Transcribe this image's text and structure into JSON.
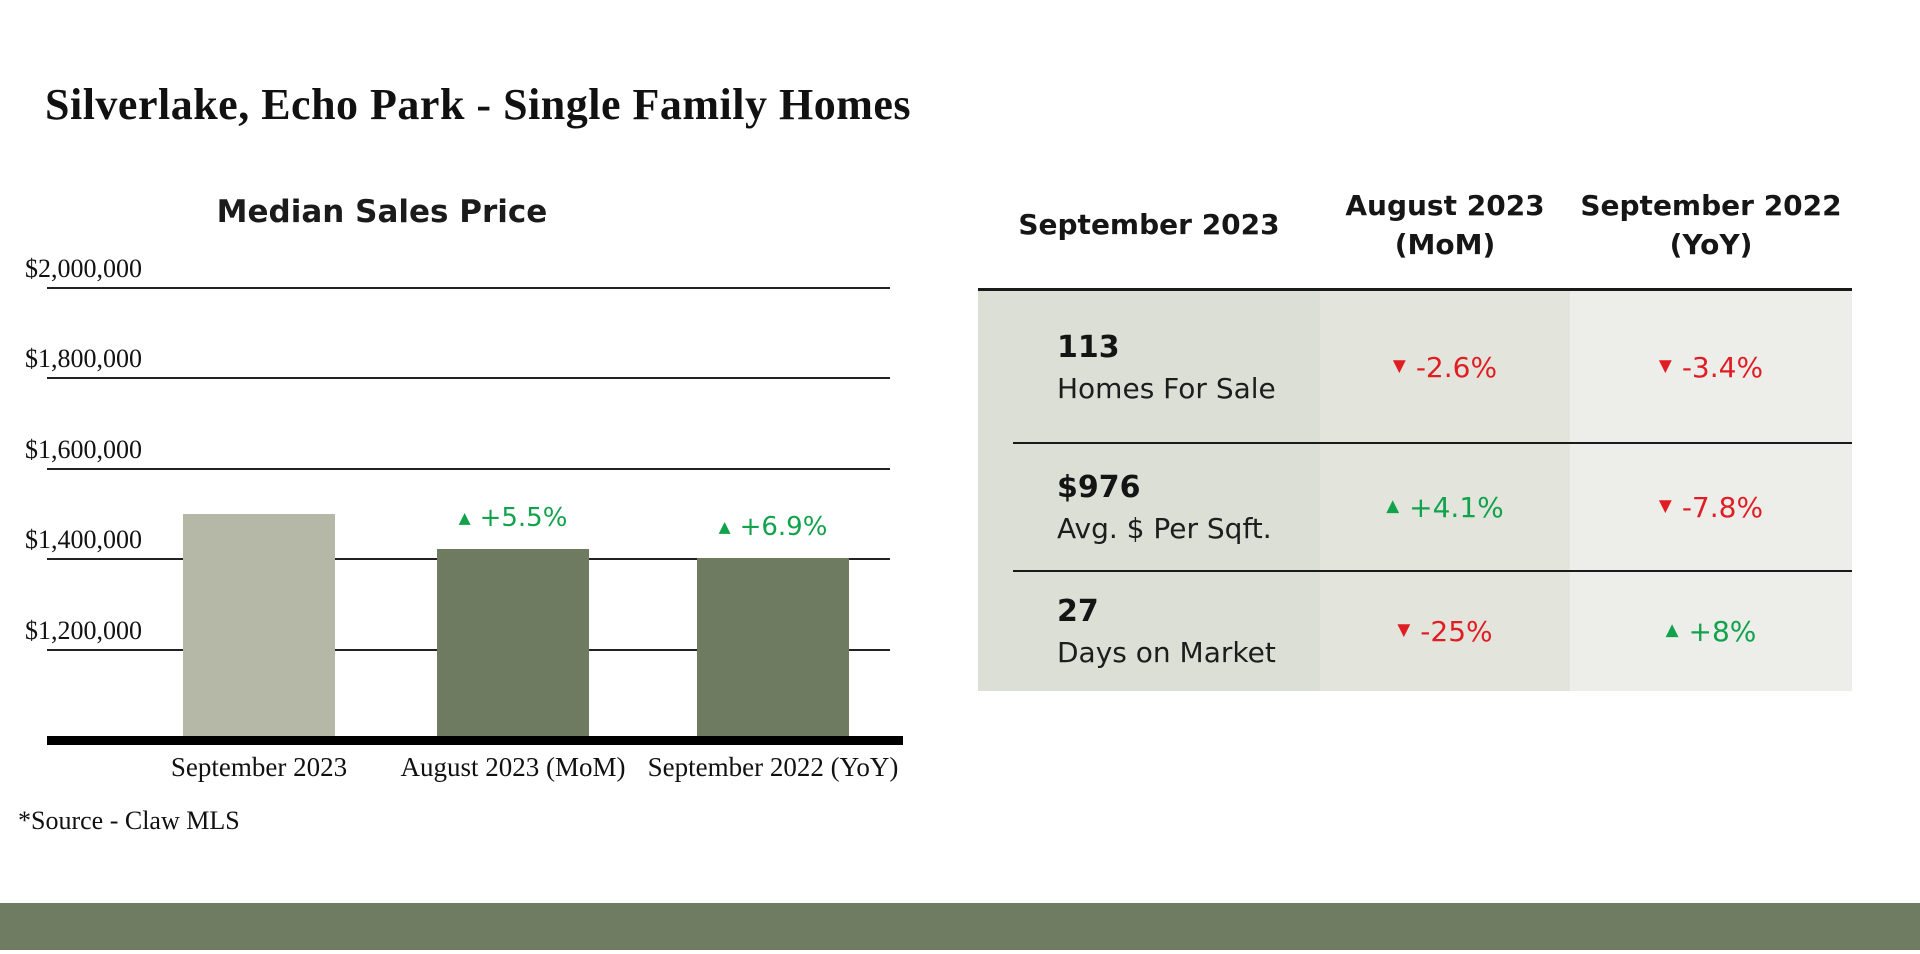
{
  "page": {
    "title": "Silverlake, Echo Park - Single Family Homes",
    "source_note": "*Source - Claw MLS"
  },
  "colors": {
    "positive": "#12a24c",
    "negative": "#e11d24",
    "footer_bar": "#6f7c62",
    "bar_light": "#b5b8a6",
    "bar_dark": "#6f7b61",
    "table_col1_bg": "#dcdfd6",
    "table_col2_bg": "#e3e5dd",
    "table_col3_bg": "#edeee9"
  },
  "chart_data": {
    "type": "bar",
    "title": "Median Sales Price",
    "categories": [
      "September 2023",
      "August 2023 (MoM)",
      "September 2022 (YoY)"
    ],
    "values": [
      1500000,
      1422000,
      1403000
    ],
    "value_unit": "USD",
    "bar_colors": [
      "#b5b8a6",
      "#6f7b61",
      "#6f7b61"
    ],
    "annotations": [
      null,
      {
        "icon": "▲",
        "text": "+5.5%",
        "sentiment": "positive"
      },
      {
        "icon": "▲",
        "text": "+6.9%",
        "sentiment": "positive"
      }
    ],
    "ylim": [
      1000000,
      2100000
    ],
    "yticks": [
      {
        "value": 2000000,
        "label": "$2,000,000"
      },
      {
        "value": 1800000,
        "label": "$1,800,000"
      },
      {
        "value": 1600000,
        "label": "$1,600,000"
      },
      {
        "value": 1400000,
        "label": "$1,400,000"
      },
      {
        "value": 1200000,
        "label": "$1,200,000"
      }
    ],
    "grid": true,
    "legend": false
  },
  "table": {
    "columns": [
      {
        "line1": "September 2023",
        "line2": ""
      },
      {
        "line1": "August 2023",
        "line2": "(MoM)"
      },
      {
        "line1": "September 2022",
        "line2": "(YoY)"
      }
    ],
    "rows": [
      {
        "value": "113",
        "label": "Homes For Sale",
        "mom": {
          "icon": "▼",
          "text": "-2.6%",
          "sentiment": "negative"
        },
        "yoy": {
          "icon": "▼",
          "text": "-3.4%",
          "sentiment": "negative"
        }
      },
      {
        "value": "$976",
        "label": "Avg. $ Per Sqft.",
        "mom": {
          "icon": "▲",
          "text": "+4.1%",
          "sentiment": "positive"
        },
        "yoy": {
          "icon": "▼",
          "text": "-7.8%",
          "sentiment": "negative"
        }
      },
      {
        "value": "27",
        "label": "Days on Market",
        "mom": {
          "icon": "▼",
          "text": "-25%",
          "sentiment": "negative"
        },
        "yoy": {
          "icon": "▲",
          "text": "+8%",
          "sentiment": "positive"
        }
      }
    ]
  }
}
